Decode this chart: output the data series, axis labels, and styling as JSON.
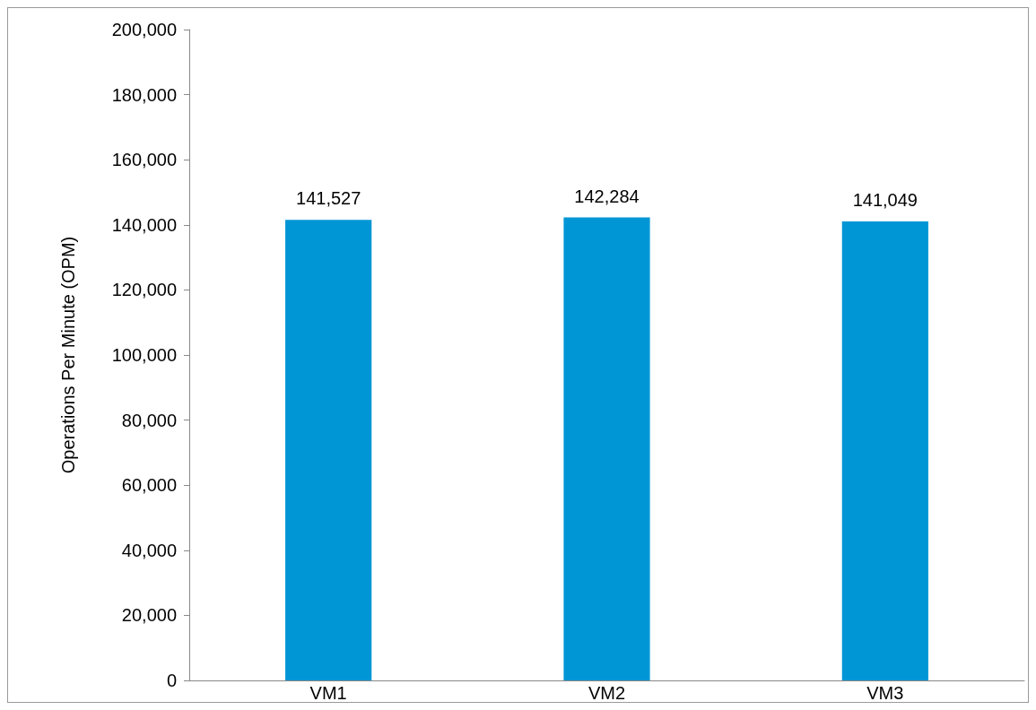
{
  "chart_data": {
    "type": "bar",
    "ylabel": "Operations Per Minute (OPM)",
    "categories": [
      "VM1",
      "VM2",
      "VM3"
    ],
    "values": [
      141527,
      142284,
      141049
    ],
    "value_labels": [
      "141,527",
      "142,284",
      "141,049"
    ],
    "color": "#0096d6",
    "ylim": [
      0,
      200000
    ],
    "yticks": [
      0,
      {
        "value": 20000,
        "label": "20,000"
      },
      {
        "value": 40000,
        "label": "40,000"
      },
      {
        "value": 60000,
        "label": "60,000"
      },
      {
        "value": 80000,
        "label": "80,000"
      },
      {
        "value": 100000,
        "label": "100,000"
      },
      {
        "value": 120000,
        "label": "120,000"
      },
      {
        "value": 140000,
        "label": "140,000"
      },
      {
        "value": 160000,
        "label": "160,000"
      },
      {
        "value": 180000,
        "label": "180,000"
      },
      {
        "value": 200000,
        "label": "200,000"
      }
    ]
  }
}
